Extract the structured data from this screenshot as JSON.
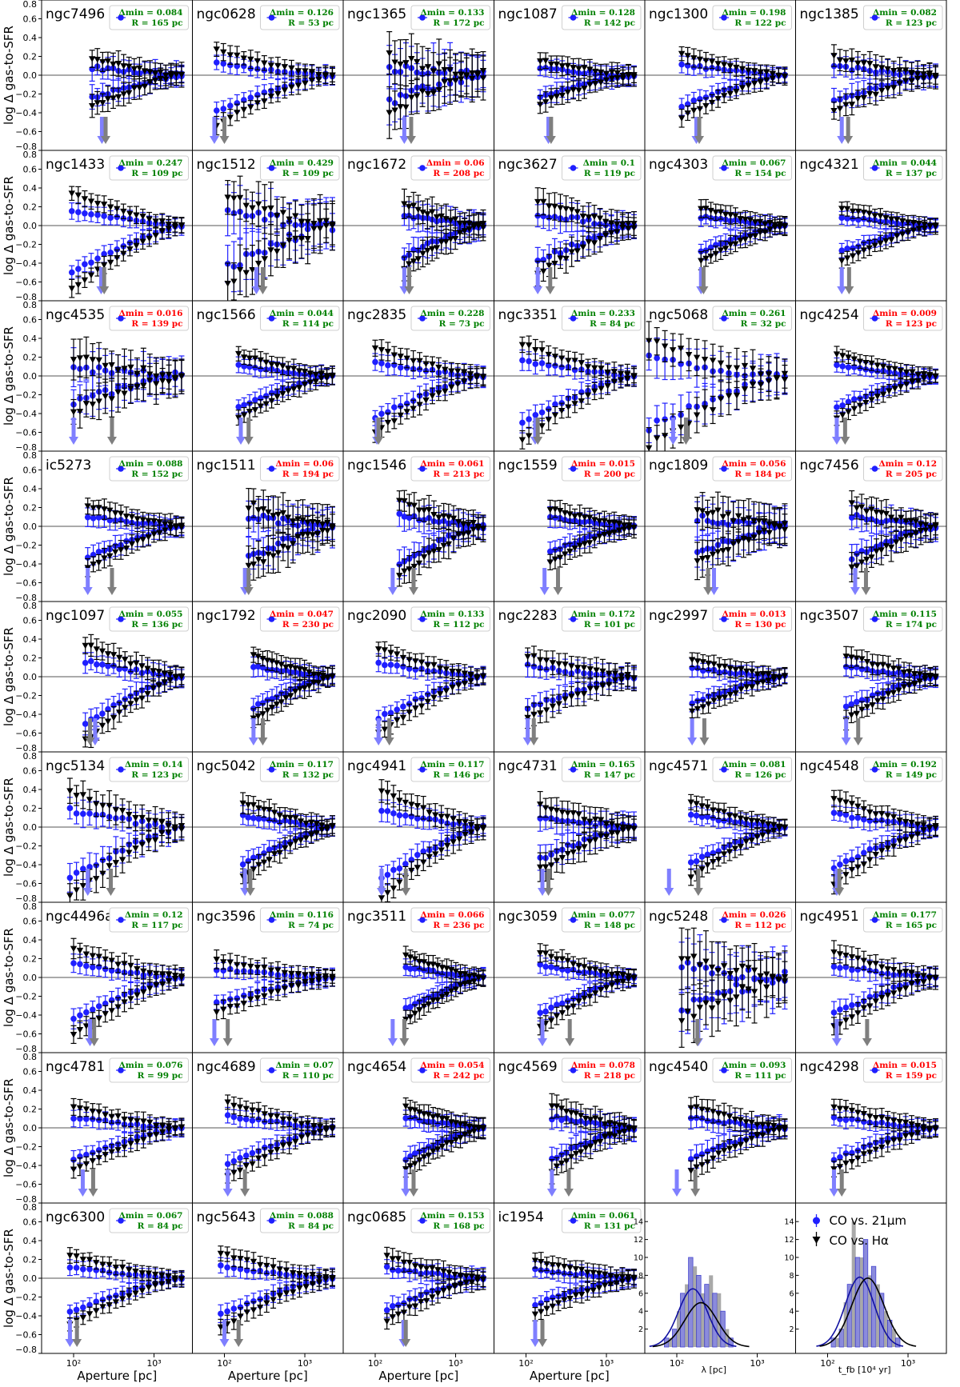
{
  "colors": {
    "co_vs_21um": "#1f1fff",
    "co_vs_halpha": "#000000",
    "blue_arrow": "#7f7fff",
    "grey_arrow": "#7f7f7f",
    "green_text": "#008000",
    "red_text": "#ff0000",
    "hist_fill": "#7f7fd9",
    "grey_hist": "#9a9a9a"
  },
  "figure": {
    "ylabel": "log Δ gas-to-SFR",
    "xlabel": "Aperture [pc]",
    "yticks": [
      "0.8",
      "0.6",
      "0.4",
      "0.2",
      "0.0",
      "−0.2",
      "−0.4",
      "−0.6",
      "−0.8"
    ],
    "xticks": [
      "10²",
      "10³"
    ],
    "legend_delta_prefix": "Δmin = ",
    "legend_r_prefix": "R = ",
    "legend_r_suffix": " pc"
  },
  "chart_data": {
    "type": "scatter",
    "description_note": "",
    "y_range": [
      -0.8,
      0.8
    ],
    "x_scale": "log",
    "x_range_pc": [
      40,
      3000
    ],
    "series": [
      {
        "name": "CO vs. 21μm",
        "marker": "circle",
        "color": "#1f1fff"
      },
      {
        "name": "CO vs. Hα",
        "marker": "triangle-down",
        "color": "#000000"
      }
    ],
    "panels": [
      {
        "galaxy": "ngc7496",
        "delta_min": "0.084",
        "R_pc": "165",
        "status": "green",
        "arrow_blue": 225,
        "arrow_grey": 250,
        "x_start": 170,
        "sep": 0.45,
        "scatter": 0.08
      },
      {
        "galaxy": "ngc0628",
        "delta_min": "0.126",
        "R_pc": "53",
        "status": "green",
        "arrow_blue": 75,
        "arrow_grey": 100,
        "x_start": 80,
        "sep": 0.7,
        "scatter": 0.05
      },
      {
        "galaxy": "ngc1365",
        "delta_min": "0.133",
        "R_pc": "172",
        "status": "green",
        "arrow_blue": 230,
        "arrow_grey": 280,
        "x_start": 150,
        "sep": 0.5,
        "scatter": 0.2
      },
      {
        "galaxy": "ngc1087",
        "delta_min": "0.128",
        "R_pc": "142",
        "status": "green",
        "arrow_blue": 190,
        "arrow_grey": 205,
        "x_start": 150,
        "sep": 0.4,
        "scatter": 0.06
      },
      {
        "galaxy": "ngc1300",
        "delta_min": "0.198",
        "R_pc": "122",
        "status": "green",
        "arrow_blue": 175,
        "arrow_grey": 190,
        "x_start": 115,
        "sep": 0.6,
        "scatter": 0.05
      },
      {
        "galaxy": "ngc1385",
        "delta_min": "0.082",
        "R_pc": "123",
        "status": "green",
        "arrow_blue": 150,
        "arrow_grey": 180,
        "x_start": 120,
        "sep": 0.5,
        "scatter": 0.08
      },
      {
        "galaxy": "ngc1433",
        "delta_min": "0.247",
        "R_pc": "109",
        "status": "green",
        "arrow_blue": 220,
        "arrow_grey": 240,
        "x_start": 95,
        "sep": 0.9,
        "scatter": 0.05
      },
      {
        "galaxy": "ngc1512",
        "delta_min": "0.429",
        "R_pc": "109",
        "status": "green",
        "arrow_blue": 250,
        "arrow_grey": 300,
        "x_start": 110,
        "sep": 0.8,
        "scatter": 0.2
      },
      {
        "galaxy": "ngc1672",
        "delta_min": "0.06",
        "R_pc": "208",
        "status": "red",
        "arrow_blue": 230,
        "arrow_grey": 265,
        "x_start": 230,
        "sep": 0.6,
        "scatter": 0.1
      },
      {
        "galaxy": "ngc3627",
        "delta_min": "0.1",
        "R_pc": "119",
        "status": "green",
        "arrow_blue": 140,
        "arrow_grey": 200,
        "x_start": 140,
        "sep": 0.7,
        "scatter": 0.1
      },
      {
        "galaxy": "ngc4303",
        "delta_min": "0.067",
        "R_pc": "154",
        "status": "green",
        "arrow_blue": 200,
        "arrow_grey": 215,
        "x_start": 200,
        "sep": 0.5,
        "scatter": 0.05
      },
      {
        "galaxy": "ngc4321",
        "delta_min": "0.044",
        "R_pc": "137",
        "status": "green",
        "arrow_blue": 150,
        "arrow_grey": 185,
        "x_start": 150,
        "sep": 0.5,
        "scatter": 0.04
      },
      {
        "galaxy": "ngc4535",
        "delta_min": "0.016",
        "R_pc": "139",
        "status": "red",
        "arrow_blue": 100,
        "arrow_grey": 300,
        "x_start": 100,
        "sep": 0.5,
        "scatter": 0.15
      },
      {
        "galaxy": "ngc1566",
        "delta_min": "0.044",
        "R_pc": "114",
        "status": "green",
        "arrow_blue": 160,
        "arrow_grey": 200,
        "x_start": 150,
        "sep": 0.6,
        "scatter": 0.05
      },
      {
        "galaxy": "ngc2835",
        "delta_min": "0.228",
        "R_pc": "73",
        "status": "green",
        "arrow_blue": 105,
        "arrow_grey": 110,
        "x_start": 100,
        "sep": 0.8,
        "scatter": 0.06
      },
      {
        "galaxy": "ngc3351",
        "delta_min": "0.233",
        "R_pc": "84",
        "status": "green",
        "arrow_blue": 130,
        "arrow_grey": 140,
        "x_start": 90,
        "sep": 0.9,
        "scatter": 0.06
      },
      {
        "galaxy": "ngc5068",
        "delta_min": "0.261",
        "R_pc": "32",
        "status": "green",
        "arrow_blue": 90,
        "arrow_grey": 130,
        "x_start": 45,
        "sep": 1.0,
        "scatter": 0.15
      },
      {
        "galaxy": "ngc4254",
        "delta_min": "0.009",
        "R_pc": "123",
        "status": "red",
        "arrow_blue": 130,
        "arrow_grey": 165,
        "x_start": 130,
        "sep": 0.6,
        "scatter": 0.04
      },
      {
        "galaxy": "ic5273",
        "delta_min": "0.088",
        "R_pc": "152",
        "status": "green",
        "arrow_blue": 150,
        "arrow_grey": 300,
        "x_start": 150,
        "sep": 0.6,
        "scatter": 0.06
      },
      {
        "galaxy": "ngc1511",
        "delta_min": "0.06",
        "R_pc": "194",
        "status": "red",
        "arrow_blue": 180,
        "arrow_grey": 200,
        "x_start": 200,
        "sep": 0.6,
        "scatter": 0.15
      },
      {
        "galaxy": "ngc1546",
        "delta_min": "0.061",
        "R_pc": "213",
        "status": "red",
        "arrow_blue": 165,
        "arrow_grey": 300,
        "x_start": 200,
        "sep": 0.7,
        "scatter": 0.1
      },
      {
        "galaxy": "ngc1559",
        "delta_min": "0.015",
        "R_pc": "200",
        "status": "red",
        "arrow_blue": 170,
        "arrow_grey": 250,
        "x_start": 200,
        "sep": 0.5,
        "scatter": 0.06
      },
      {
        "galaxy": "ngc1809",
        "delta_min": "0.056",
        "R_pc": "184",
        "status": "red",
        "arrow_blue": 290,
        "arrow_grey": 245,
        "x_start": 180,
        "sep": 0.5,
        "scatter": 0.15
      },
      {
        "galaxy": "ngc7456",
        "delta_min": "0.12",
        "R_pc": "205",
        "status": "red",
        "arrow_blue": 220,
        "arrow_grey": 300,
        "x_start": 200,
        "sep": 0.6,
        "scatter": 0.1
      },
      {
        "galaxy": "ngc1097",
        "delta_min": "0.055",
        "R_pc": "136",
        "status": "green",
        "arrow_blue": 185,
        "arrow_grey": 160,
        "x_start": 140,
        "sep": 0.9,
        "scatter": 0.07
      },
      {
        "galaxy": "ngc1792",
        "delta_min": "0.047",
        "R_pc": "230",
        "status": "red",
        "arrow_blue": 230,
        "arrow_grey": 300,
        "x_start": 230,
        "sep": 0.6,
        "scatter": 0.06
      },
      {
        "galaxy": "ngc2090",
        "delta_min": "0.133",
        "R_pc": "112",
        "status": "green",
        "arrow_blue": 110,
        "arrow_grey": 150,
        "x_start": 110,
        "sep": 0.8,
        "scatter": 0.05
      },
      {
        "galaxy": "ngc2283",
        "delta_min": "0.172",
        "R_pc": "101",
        "status": "green",
        "arrow_blue": 105,
        "arrow_grey": 125,
        "x_start": 105,
        "sep": 0.6,
        "scatter": 0.08
      },
      {
        "galaxy": "ngc2997",
        "delta_min": "0.013",
        "R_pc": "130",
        "status": "red",
        "arrow_blue": 155,
        "arrow_grey": 220,
        "x_start": 155,
        "sep": 0.5,
        "scatter": 0.05
      },
      {
        "galaxy": "ngc3507",
        "delta_min": "0.115",
        "R_pc": "174",
        "status": "green",
        "arrow_blue": 170,
        "arrow_grey": 240,
        "x_start": 170,
        "sep": 0.6,
        "scatter": 0.06
      },
      {
        "galaxy": "ngc5134",
        "delta_min": "0.14",
        "R_pc": "123",
        "status": "green",
        "arrow_blue": 150,
        "arrow_grey": 290,
        "x_start": 90,
        "sep": 1.0,
        "scatter": 0.1
      },
      {
        "galaxy": "ngc5042",
        "delta_min": "0.117",
        "R_pc": "132",
        "status": "green",
        "arrow_blue": 180,
        "arrow_grey": 210,
        "x_start": 170,
        "sep": 0.7,
        "scatter": 0.06
      },
      {
        "galaxy": "ngc4941",
        "delta_min": "0.117",
        "R_pc": "146",
        "status": "green",
        "arrow_blue": 120,
        "arrow_grey": 240,
        "x_start": 120,
        "sep": 1.0,
        "scatter": 0.07
      },
      {
        "galaxy": "ngc4731",
        "delta_min": "0.165",
        "R_pc": "147",
        "status": "green",
        "arrow_blue": 160,
        "arrow_grey": 190,
        "x_start": 150,
        "sep": 0.6,
        "scatter": 0.1
      },
      {
        "galaxy": "ngc4571",
        "delta_min": "0.081",
        "R_pc": "126",
        "status": "green",
        "arrow_blue": 80,
        "arrow_grey": 185,
        "x_start": 150,
        "sep": 0.7,
        "scatter": 0.05
      },
      {
        "galaxy": "ngc4548",
        "delta_min": "0.192",
        "R_pc": "149",
        "status": "green",
        "arrow_blue": 130,
        "arrow_grey": 140,
        "x_start": 120,
        "sep": 0.8,
        "scatter": 0.06
      },
      {
        "galaxy": "ngc4496a",
        "delta_min": "0.12",
        "R_pc": "117",
        "status": "green",
        "arrow_blue": 160,
        "arrow_grey": 180,
        "x_start": 100,
        "sep": 0.8,
        "scatter": 0.06
      },
      {
        "galaxy": "ngc3596",
        "delta_min": "0.116",
        "R_pc": "74",
        "status": "green",
        "arrow_blue": 75,
        "arrow_grey": 110,
        "x_start": 80,
        "sep": 0.5,
        "scatter": 0.05
      },
      {
        "galaxy": "ngc3511",
        "delta_min": "0.066",
        "R_pc": "236",
        "status": "red",
        "arrow_blue": 165,
        "arrow_grey": 230,
        "x_start": 240,
        "sep": 0.6,
        "scatter": 0.05
      },
      {
        "galaxy": "ngc3059",
        "delta_min": "0.077",
        "R_pc": "148",
        "status": "green",
        "arrow_blue": 160,
        "arrow_grey": 350,
        "x_start": 150,
        "sep": 0.7,
        "scatter": 0.05
      },
      {
        "galaxy": "ngc5248",
        "delta_min": "0.026",
        "R_pc": "112",
        "status": "red",
        "arrow_blue": 185,
        "arrow_grey": 180,
        "x_start": 115,
        "sep": 0.6,
        "scatter": 0.25
      },
      {
        "galaxy": "ngc4951",
        "delta_min": "0.177",
        "R_pc": "165",
        "status": "green",
        "arrow_blue": 130,
        "arrow_grey": 310,
        "x_start": 120,
        "sep": 0.7,
        "scatter": 0.07
      },
      {
        "galaxy": "ngc4781",
        "delta_min": "0.076",
        "R_pc": "99",
        "status": "green",
        "arrow_blue": 130,
        "arrow_grey": 175,
        "x_start": 100,
        "sep": 0.6,
        "scatter": 0.05
      },
      {
        "galaxy": "ngc4689",
        "delta_min": "0.07",
        "R_pc": "110",
        "status": "green",
        "arrow_blue": 110,
        "arrow_grey": 180,
        "x_start": 110,
        "sep": 0.7,
        "scatter": 0.05
      },
      {
        "galaxy": "ngc4654",
        "delta_min": "0.054",
        "R_pc": "242",
        "status": "red",
        "arrow_blue": 240,
        "arrow_grey": 300,
        "x_start": 240,
        "sep": 0.6,
        "scatter": 0.06
      },
      {
        "galaxy": "ngc4569",
        "delta_min": "0.078",
        "R_pc": "218",
        "status": "red",
        "arrow_blue": 210,
        "arrow_grey": 340,
        "x_start": 210,
        "sep": 0.6,
        "scatter": 0.08
      },
      {
        "galaxy": "ngc4540",
        "delta_min": "0.093",
        "R_pc": "111",
        "status": "green",
        "arrow_blue": 100,
        "arrow_grey": 170,
        "x_start": 150,
        "sep": 0.6,
        "scatter": 0.07
      },
      {
        "galaxy": "ngc4298",
        "delta_min": "0.015",
        "R_pc": "159",
        "status": "red",
        "arrow_blue": 120,
        "arrow_grey": 150,
        "x_start": 120,
        "sep": 0.6,
        "scatter": 0.05
      },
      {
        "galaxy": "ngc6300",
        "delta_min": "0.067",
        "R_pc": "84",
        "status": "green",
        "arrow_blue": 90,
        "arrow_grey": 110,
        "x_start": 90,
        "sep": 0.65,
        "scatter": 0.04
      },
      {
        "galaxy": "ngc5643",
        "delta_min": "0.088",
        "R_pc": "84",
        "status": "green",
        "arrow_blue": 100,
        "arrow_grey": 150,
        "x_start": 90,
        "sep": 0.7,
        "scatter": 0.05
      },
      {
        "galaxy": "ngc0685",
        "delta_min": "0.153",
        "R_pc": "168",
        "status": "green",
        "arrow_blue": 225,
        "arrow_grey": 240,
        "x_start": 140,
        "sep": 0.6,
        "scatter": 0.06
      },
      {
        "galaxy": "ic1954",
        "delta_min": "0.061",
        "R_pc": "131",
        "status": "green",
        "arrow_blue": 130,
        "arrow_grey": 160,
        "x_start": 130,
        "sep": 0.5,
        "scatter": 0.05
      }
    ],
    "histograms": [
      {
        "xlabel": "λ [pc]",
        "yticks": [
          0,
          2,
          4,
          6,
          8,
          10,
          12,
          14
        ],
        "bins_log10": [
          1.85,
          1.95,
          2.05,
          2.15,
          2.25,
          2.35,
          2.45,
          2.55,
          2.65
        ],
        "counts_blue": [
          1,
          2,
          6,
          10,
          8,
          7,
          6,
          4,
          1
        ],
        "counts_grey": [
          0,
          1,
          4,
          7,
          9,
          6,
          8,
          6,
          2
        ]
      },
      {
        "xlabel": "t_fb [10⁴ yr]",
        "yticks": [
          0,
          2,
          4,
          6,
          8,
          10,
          12,
          14
        ],
        "bins_log10": [
          2.05,
          2.15,
          2.25,
          2.35,
          2.45,
          2.55,
          2.65,
          2.75,
          2.85
        ],
        "counts_blue": [
          1,
          2,
          7,
          10,
          12,
          9,
          6,
          3,
          1
        ],
        "counts_grey": [
          0,
          1,
          5,
          14,
          10,
          8,
          7,
          4,
          2
        ]
      }
    ],
    "legend": {
      "blue_label": "CO vs. 21μm",
      "black_label": "CO vs. Hα"
    }
  }
}
